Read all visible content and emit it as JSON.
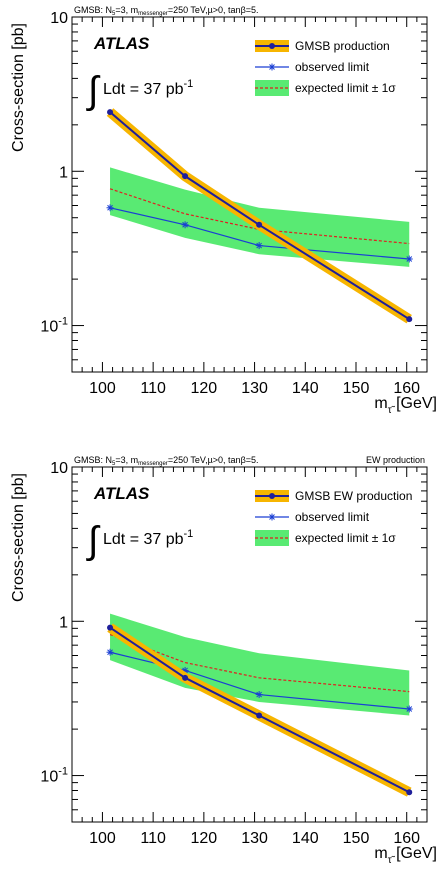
{
  "chart_data": [
    {
      "type": "line",
      "panel": "top",
      "header_left": "GMSB: N",
      "header_left_sub": "5",
      "header_left_mid": "=3, m",
      "header_left_sub2": "messenger",
      "header_left_end": "=250 TeV,µ>0, tanβ=5.",
      "header_right": "",
      "experiment": "ATLAS",
      "lumi_prefix": "Ldt = 37 pb",
      "lumi_sup": "-1",
      "integral_symbol": "∫",
      "xlabel_main": "m",
      "xlabel_sub": "τ̃",
      "xlabel_unit": " [GeV]",
      "ylabel": "Cross-section [pb]",
      "xlim": [
        94,
        164
      ],
      "ylim": [
        0.05,
        10
      ],
      "yscale": "log",
      "xticks": [
        100,
        110,
        120,
        130,
        140,
        150,
        160
      ],
      "ytick_labels": [
        {
          "value": 10,
          "base": "10",
          "sup": ""
        },
        {
          "value": 1,
          "base": "1",
          "sup": ""
        },
        {
          "value": 0.1,
          "base": "10",
          "sup": "-1"
        }
      ],
      "legend": {
        "placement": "top-right",
        "entries": [
          {
            "key": "production",
            "label": "GMSB production"
          },
          {
            "key": "observed",
            "label": "observed limit"
          },
          {
            "key": "expected",
            "label": "expected limit ± 1σ"
          }
        ]
      },
      "series": [
        {
          "key": "production",
          "name": "GMSB production",
          "color": "#1f1f9a",
          "band_color": "#f7b500",
          "x": [
            101.5,
            116.3,
            130.9,
            160.5
          ],
          "y": [
            2.42,
            0.93,
            0.45,
            0.11
          ]
        },
        {
          "key": "observed",
          "name": "observed limit",
          "color": "#1a3fd4",
          "x": [
            101.5,
            116.3,
            130.9,
            160.5
          ],
          "y": [
            0.58,
            0.45,
            0.33,
            0.27
          ]
        },
        {
          "key": "expected",
          "name": "expected limit ± 1σ",
          "color": "#e02020",
          "band_color": "#3ce65a",
          "x": [
            101.5,
            116.3,
            130.9,
            160.5
          ],
          "y": [
            0.77,
            0.53,
            0.42,
            0.34
          ],
          "y_low": [
            0.52,
            0.37,
            0.29,
            0.24
          ],
          "y_high": [
            1.06,
            0.76,
            0.58,
            0.47
          ]
        }
      ]
    },
    {
      "type": "line",
      "panel": "bottom",
      "header_left": "GMSB: N",
      "header_left_sub": "5",
      "header_left_mid": "=3, m",
      "header_left_sub2": "messenger",
      "header_left_end": "=250 TeV,µ>0, tanβ=5.",
      "header_right": "EW production",
      "experiment": "ATLAS",
      "lumi_prefix": "Ldt = 37 pb",
      "lumi_sup": "-1",
      "integral_symbol": "∫",
      "xlabel_main": "m",
      "xlabel_sub": "τ̃",
      "xlabel_unit": " [GeV]",
      "ylabel": "Cross-section [pb]",
      "xlim": [
        94,
        164
      ],
      "ylim": [
        0.05,
        10
      ],
      "yscale": "log",
      "xticks": [
        100,
        110,
        120,
        130,
        140,
        150,
        160
      ],
      "ytick_labels": [
        {
          "value": 10,
          "base": "10",
          "sup": ""
        },
        {
          "value": 1,
          "base": "1",
          "sup": ""
        },
        {
          "value": 0.1,
          "base": "10",
          "sup": "-1"
        }
      ],
      "legend": {
        "placement": "top-right",
        "entries": [
          {
            "key": "production",
            "label": "GMSB EW production"
          },
          {
            "key": "observed",
            "label": "observed limit"
          },
          {
            "key": "expected",
            "label": "expected limit ± 1σ"
          }
        ]
      },
      "series": [
        {
          "key": "production",
          "name": "GMSB EW production",
          "color": "#1f1f9a",
          "band_color": "#f7b500",
          "x": [
            101.5,
            116.3,
            130.9,
            160.5
          ],
          "y": [
            0.91,
            0.43,
            0.245,
            0.078
          ]
        },
        {
          "key": "observed",
          "name": "observed limit",
          "color": "#1a3fd4",
          "x": [
            101.5,
            116.3,
            130.9,
            160.5
          ],
          "y": [
            0.63,
            0.48,
            0.335,
            0.27
          ]
        },
        {
          "key": "expected",
          "name": "expected limit ± 1σ",
          "color": "#e02020",
          "band_color": "#3ce65a",
          "x": [
            101.5,
            116.3,
            130.9,
            160.5
          ],
          "y": [
            0.82,
            0.54,
            0.43,
            0.35
          ],
          "y_low": [
            0.56,
            0.37,
            0.3,
            0.245
          ],
          "y_high": [
            1.12,
            0.79,
            0.62,
            0.48
          ]
        }
      ]
    }
  ]
}
